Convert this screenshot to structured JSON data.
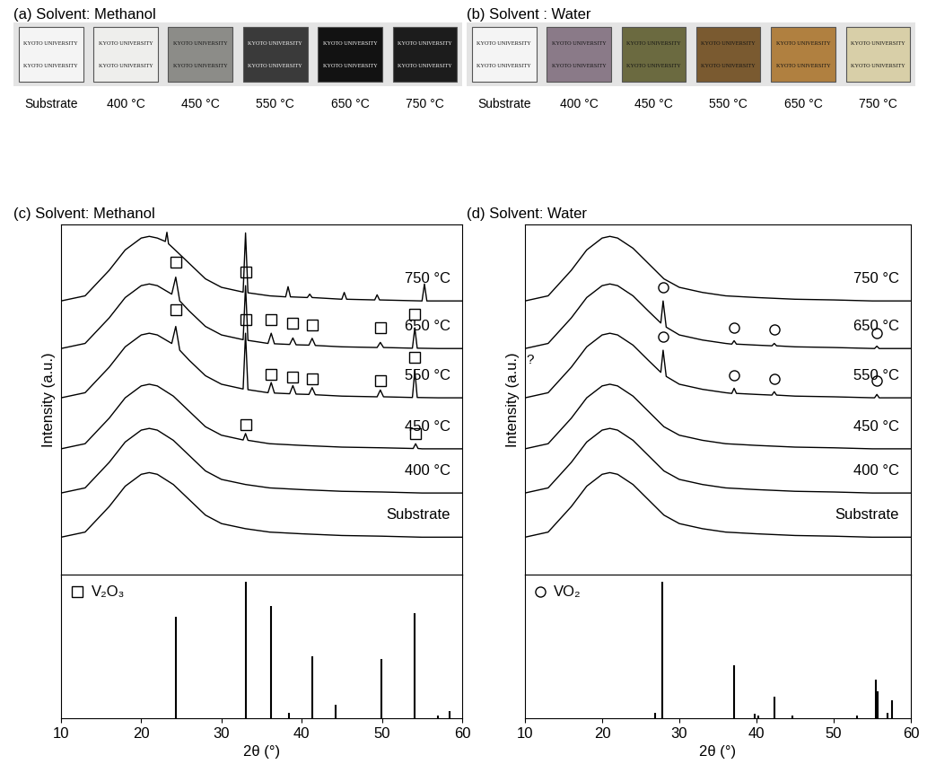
{
  "photos": [
    {
      "title": "(a) Solvent: Methanol",
      "text": "KYOTO UNIVERSITY",
      "labels": [
        "Substrate",
        "400 °C",
        "450 °C",
        "550 °C",
        "650 °C",
        "750 °C"
      ],
      "colors": [
        "#f4f4f4",
        "#eeeeec",
        "#8c8c88",
        "#3a3a3a",
        "#121212",
        "#1c1c1c"
      ]
    },
    {
      "title": "(b) Solvent : Water",
      "text": "KYOTO UNIVERSITY",
      "labels": [
        "Substrate",
        "400 °C",
        "450 °C",
        "550 °C",
        "650 °C",
        "750 °C"
      ],
      "colors": [
        "#f4f4f4",
        "#8a7a88",
        "#6b6a40",
        "#7a5a30",
        "#b08040",
        "#d8cfa8"
      ]
    }
  ],
  "chart_data": [
    {
      "type": "line",
      "title": "(c) Solvent: Methanol",
      "xlabel": "2θ (°)",
      "ylabel": "Intensity (a.u.)",
      "xlim": [
        10,
        60
      ],
      "xticks": [
        10,
        20,
        30,
        40,
        50,
        60
      ],
      "ylim": [
        0,
        103
      ],
      "tick_labels": "x",
      "color": "#000000",
      "marker": "square",
      "series": [
        {
          "name": "Substrate",
          "x": [
            10,
            13,
            16,
            18,
            20,
            21,
            22,
            24,
            26,
            28,
            30,
            33,
            36,
            40,
            45,
            50,
            55,
            60
          ],
          "values": [
            11,
            12.5,
            20,
            26,
            29.5,
            30,
            29.5,
            26.5,
            22,
            17.5,
            15,
            13.5,
            12.5,
            12,
            11.5,
            11.3,
            11,
            11
          ]
        },
        {
          "name": "400 °C",
          "x": [
            10,
            13,
            16,
            18,
            20,
            21,
            22,
            24,
            26,
            28,
            30,
            33,
            36,
            40,
            45,
            50,
            55,
            60
          ],
          "values": [
            24,
            25.5,
            33,
            39,
            42.5,
            43,
            42.5,
            39.5,
            35,
            30.5,
            28,
            26.5,
            25.5,
            25,
            24.5,
            24.3,
            24,
            24
          ]
        },
        {
          "name": "450 °C",
          "x": [
            10,
            13,
            16,
            18,
            20,
            21,
            22,
            24,
            26,
            28,
            30,
            32.7,
            33,
            33.3,
            36,
            40,
            45,
            50,
            53.9,
            54.2,
            54.5,
            55,
            60
          ],
          "values": [
            37,
            38.5,
            46,
            52,
            55.5,
            56,
            55.5,
            52.5,
            48,
            43.5,
            41,
            39.6,
            41.5,
            39.5,
            38.5,
            38,
            37.5,
            37.3,
            37.1,
            38.5,
            37.1,
            37,
            37
          ],
          "peaks": {
            "x": [
              33.0,
              54.2
            ],
            "y": [
              44,
              41.5
            ]
          }
        },
        {
          "name": "550 °C",
          "x": [
            10,
            13,
            16,
            18,
            20,
            21,
            22,
            23.8,
            24.3,
            24.8,
            26,
            28,
            30,
            32.7,
            33,
            33.3,
            35.8,
            36.2,
            36.6,
            38.5,
            38.9,
            39.3,
            40.9,
            41.3,
            41.7,
            45,
            49.4,
            49.8,
            50.2,
            53.8,
            54.1,
            54.4,
            57,
            60
          ],
          "values": [
            52,
            53.5,
            61,
            67,
            70.5,
            71,
            70.5,
            68,
            73,
            66,
            63,
            58.5,
            56,
            54.6,
            71,
            54.4,
            53.5,
            56.5,
            53.4,
            53.2,
            55.6,
            53.1,
            53,
            55,
            52.9,
            52.5,
            52.3,
            54.3,
            52.3,
            52.1,
            60.1,
            52.1,
            52,
            52
          ],
          "peaks": {
            "x": [
              24.3,
              33.0,
              36.2,
              38.9,
              41.3,
              49.8,
              54.1
            ],
            "y": [
              78,
              75,
              59,
              58,
              57.5,
              57,
              64
            ]
          }
        },
        {
          "name": "650 °C",
          "x": [
            10,
            13,
            16,
            18,
            20,
            21,
            22,
            23.8,
            24.3,
            24.8,
            26,
            28,
            30,
            32.7,
            33,
            33.3,
            35.8,
            36.2,
            36.6,
            38.5,
            38.9,
            39.3,
            40.9,
            41.3,
            41.7,
            45,
            49.4,
            49.8,
            50.2,
            53.8,
            54.1,
            54.4,
            57,
            60
          ],
          "values": [
            66.5,
            68,
            75.5,
            81.5,
            85,
            85.5,
            85,
            82.5,
            87.5,
            80.5,
            77.5,
            73,
            70.5,
            69.1,
            85,
            68.9,
            68,
            71,
            67.9,
            67.7,
            69.6,
            67.6,
            67.5,
            69.5,
            67.4,
            67,
            66.8,
            68.3,
            66.8,
            66.6,
            72.6,
            66.6,
            66.5,
            66.5
          ],
          "peaks": {
            "x": [
              24.3,
              33.0,
              36.2,
              38.9,
              41.3,
              49.8,
              54.1
            ],
            "y": [
              92,
              89,
              75,
              74,
              73.5,
              72.5,
              76.5
            ]
          }
        },
        {
          "name": "750 °C",
          "x": [
            10,
            13,
            16,
            18,
            20,
            21,
            22,
            23.0,
            23.2,
            23.4,
            24,
            26,
            28,
            30,
            32.7,
            33,
            33.3,
            36,
            38.0,
            38.3,
            38.6,
            40.7,
            41,
            41.3,
            45,
            45.3,
            45.6,
            49.1,
            49.4,
            49.7,
            55,
            55.3,
            55.6,
            60
          ],
          "values": [
            80.5,
            82,
            89.5,
            95.5,
            99,
            99.5,
            99,
            98,
            100.7,
            97.3,
            96,
            91.5,
            87,
            84.5,
            83.1,
            100.5,
            82.9,
            82,
            81.7,
            84.7,
            81.7,
            81.5,
            82.5,
            81.5,
            81,
            83,
            81,
            80.8,
            82.3,
            80.8,
            80.5,
            85.5,
            80.5,
            80.5
          ]
        }
      ],
      "reference": {
        "name": "V₂O₃",
        "type": "bar",
        "ylim": [
          0,
          105
        ],
        "x": [
          24.3,
          33.0,
          36.2,
          38.4,
          41.3,
          44.2,
          49.9,
          54.1,
          57.0,
          58.4
        ],
        "values": [
          74,
          100,
          82,
          4,
          45,
          10,
          43,
          77,
          2,
          5
        ]
      }
    },
    {
      "type": "line",
      "title": "(d) Solvent: Water",
      "xlabel": "2θ (°)",
      "ylabel": "Intensity (a.u.)",
      "xlim": [
        10,
        60
      ],
      "xticks": [
        10,
        20,
        30,
        40,
        50,
        60
      ],
      "ylim": [
        0,
        103
      ],
      "tick_labels": "x",
      "color": "#000000",
      "marker": "circle",
      "annotations": [
        {
          "text": "?",
          "x": 10.6,
          "y": 63
        }
      ],
      "series": [
        {
          "name": "Substrate",
          "x": [
            10,
            13,
            16,
            18,
            20,
            21,
            22,
            24,
            26,
            28,
            30,
            33,
            36,
            40,
            45,
            50,
            55,
            60
          ],
          "values": [
            11,
            12.5,
            20,
            26,
            29.5,
            30,
            29.5,
            26.5,
            22,
            17.5,
            15,
            13.5,
            12.5,
            12,
            11.5,
            11.3,
            11,
            11
          ]
        },
        {
          "name": "400 °C",
          "x": [
            10,
            13,
            16,
            18,
            20,
            21,
            22,
            24,
            26,
            28,
            30,
            33,
            36,
            40,
            45,
            50,
            55,
            60
          ],
          "values": [
            24,
            25.5,
            33,
            39,
            42.5,
            43,
            42.5,
            39.5,
            35,
            30.5,
            28,
            26.5,
            25.5,
            25,
            24.5,
            24.3,
            24,
            24
          ]
        },
        {
          "name": "450 °C",
          "x": [
            10,
            13,
            16,
            18,
            20,
            21,
            22,
            24,
            26,
            28,
            30,
            33,
            36,
            40,
            45,
            50,
            55,
            60
          ],
          "values": [
            37,
            38.5,
            46,
            52,
            55.5,
            56,
            55.5,
            52.5,
            48,
            43.5,
            41,
            39.5,
            38.5,
            38,
            37.5,
            37.3,
            37,
            37
          ]
        },
        {
          "name": "550 °C",
          "x": [
            10,
            13,
            16,
            18,
            20,
            21,
            22,
            24,
            26,
            27.6,
            27.9,
            28.3,
            30,
            33,
            36,
            36.8,
            37.1,
            37.4,
            40,
            42,
            42.3,
            42.6,
            45,
            50,
            55.3,
            55.6,
            55.9,
            60
          ],
          "values": [
            52,
            53.5,
            61,
            67,
            70.5,
            71,
            70.5,
            67.5,
            63,
            59.5,
            66,
            58.3,
            56,
            54.5,
            53.5,
            53.3,
            54.8,
            53.3,
            53,
            52.8,
            53.8,
            52.8,
            52.5,
            52.3,
            52,
            53,
            52,
            52
          ],
          "peaks": {
            "x": [
              27.9,
              37.1,
              42.3,
              55.6
            ],
            "y": [
              70,
              58.5,
              57.5,
              57
            ]
          }
        },
        {
          "name": "650 °C",
          "x": [
            10,
            13,
            16,
            18,
            20,
            21,
            22,
            24,
            26,
            27.6,
            27.9,
            28.3,
            30,
            33,
            36,
            36.8,
            37.1,
            37.4,
            40,
            42,
            42.3,
            42.6,
            45,
            50,
            55.3,
            55.6,
            55.9,
            60
          ],
          "values": [
            66.5,
            68,
            75.5,
            81.5,
            85,
            85.5,
            85,
            82,
            77.5,
            74,
            80.5,
            72.8,
            70.5,
            69,
            68,
            67.8,
            68.8,
            67.8,
            67.5,
            67.3,
            68,
            67.3,
            67,
            66.8,
            66.5,
            67.2,
            66.5,
            66.5
          ],
          "peaks": {
            "x": [
              27.9,
              37.1,
              42.3,
              55.6
            ],
            "y": [
              84.5,
              72.5,
              72,
              71
            ]
          }
        },
        {
          "name": "750 °C",
          "x": [
            10,
            13,
            16,
            18,
            20,
            21,
            22,
            24,
            26,
            28,
            30,
            33,
            36,
            40,
            45,
            50,
            55,
            60
          ],
          "values": [
            80.5,
            82,
            89.5,
            95.5,
            99,
            99.5,
            99,
            96,
            91.5,
            87,
            84.5,
            83,
            82,
            81.5,
            81,
            80.8,
            80.5,
            80.5
          ]
        }
      ],
      "reference": {
        "name": "VO₂",
        "type": "bar",
        "ylim": [
          0,
          105
        ],
        "x": [
          26.9,
          27.8,
          37.1,
          39.8,
          40.2,
          42.3,
          44.7,
          53.0,
          55.5,
          55.7,
          57.0,
          57.5
        ],
        "values": [
          4,
          100,
          39,
          3,
          2,
          16,
          2,
          2,
          28,
          20,
          4,
          13
        ]
      }
    }
  ]
}
